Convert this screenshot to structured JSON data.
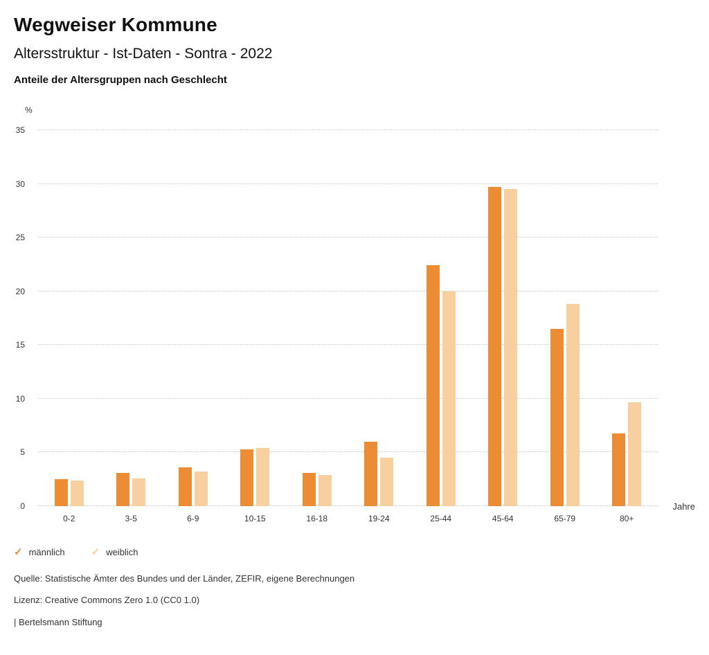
{
  "header": {
    "title": "Wegweiser Kommune",
    "subtitle": "Altersstruktur - Ist-Daten - Sontra - 2022",
    "chart_heading": "Anteile der Altersgruppen nach Geschlecht"
  },
  "chart_data": {
    "type": "bar",
    "title": "Anteile der Altersgruppen nach Geschlecht",
    "y_unit": "%",
    "x_unit": "Jahre",
    "ylim": [
      0,
      35
    ],
    "ytick_step": 5,
    "grid": true,
    "legend_position": "bottom",
    "categories": [
      "0-2",
      "3-5",
      "6-9",
      "10-15",
      "16-18",
      "19-24",
      "25-44",
      "45-64",
      "65-79",
      "80+"
    ],
    "series": [
      {
        "name": "männlich",
        "color": "#EC8C34",
        "values": [
          2.5,
          3.1,
          3.6,
          5.3,
          3.1,
          6.0,
          22.4,
          29.7,
          16.5,
          6.8
        ]
      },
      {
        "name": "weiblich",
        "color": "#F8D09F",
        "values": [
          2.4,
          2.6,
          3.2,
          5.4,
          2.9,
          4.5,
          20.0,
          29.5,
          18.8,
          9.7
        ]
      }
    ]
  },
  "legend": {
    "check_glyph": "✓"
  },
  "footer": {
    "source": "Quelle: Statistische Ämter des Bundes und der Länder, ZEFIR, eigene Berechnungen",
    "license": "Lizenz: Creative Commons Zero 1.0 (CC0 1.0)",
    "attribution": "| Bertelsmann Stiftung"
  }
}
